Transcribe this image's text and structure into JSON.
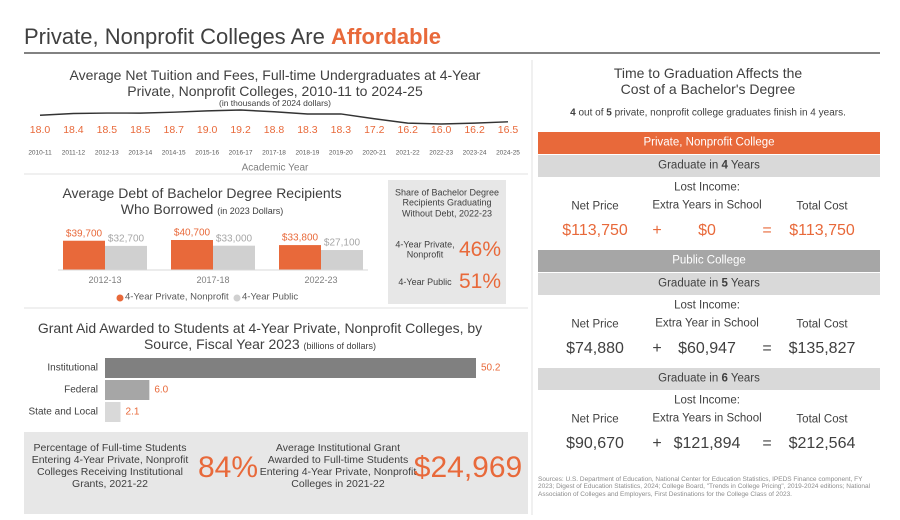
{
  "header": {
    "title": "Private, Nonprofit Colleges Are ",
    "title_emphasis": "Affordable"
  },
  "chart_data": [
    {
      "type": "line",
      "title": "Average Net Tuition and Fees, Full-time Undergraduates at 4-Year Private, Nonprofit Colleges, 2010-11 to 2024-25",
      "subtitle": "(in thousands of 2024 dollars)",
      "x_label": "Academic Year",
      "color": "#333333",
      "label_color": "#e8693a",
      "categories": [
        "2010-11",
        "2011-12",
        "2012-13",
        "2013-14",
        "2014-15",
        "2015-16",
        "2016-17",
        "2017-18",
        "2018-19",
        "2019-20",
        "2020-21",
        "2021-22",
        "2022-23",
        "2023-24",
        "2024-25"
      ],
      "values": [
        18.0,
        18.4,
        18.5,
        18.5,
        18.7,
        19.0,
        19.2,
        18.8,
        18.3,
        18.3,
        17.2,
        16.2,
        16.0,
        16.2,
        16.5
      ],
      "value_labels": [
        "18.0",
        "18.4",
        "18.5",
        "18.5",
        "18.7",
        "19.0",
        "19.2",
        "18.8",
        "18.3",
        "18.3",
        "17.2",
        "16.2",
        "16.0",
        "16.2",
        "16.5"
      ]
    },
    {
      "type": "bar",
      "title": "Average Debt of Bachelor Degree Recipients Who Borrowed",
      "title_note": "(in 2023 Dollars)",
      "categories": [
        "2012-13",
        "2017-18",
        "2022-23"
      ],
      "series": [
        {
          "name": "4-Year Private, Nonprofit",
          "color": "#e8693a",
          "values": [
            39700,
            40700,
            33800
          ],
          "value_labels": [
            "$39,700",
            "$40,700",
            "$33,800"
          ]
        },
        {
          "name": "4-Year Public",
          "color": "#d0d0d0",
          "values": [
            32700,
            33000,
            27100
          ],
          "value_labels": [
            "$32,700",
            "$33,000",
            "$27,100"
          ]
        }
      ]
    },
    {
      "type": "hbar",
      "title": "Grant Aid Awarded to Students at 4-Year Private, Nonprofit Colleges, by Source, Fiscal Year 2023",
      "title_note": "(billions of dollars)",
      "categories": [
        "Institutional",
        "Federal",
        "State and Local"
      ],
      "values": [
        50.2,
        6.0,
        2.1
      ],
      "value_labels": [
        "50.2",
        "6.0",
        "2.1"
      ],
      "colors": [
        "#808080",
        "#a6a6a6",
        "#d9d9d9"
      ]
    }
  ],
  "share": {
    "title": "Share of Bachelor Degree Recipients Graduating Without Debt, 2022-23",
    "rows": [
      {
        "label": "4-Year Private, Nonprofit",
        "value": "46%"
      },
      {
        "label": "4-Year Public",
        "value": "51%"
      }
    ]
  },
  "stats": [
    {
      "label": "Percentage of Full-time Students Entering 4-Year Private, Nonprofit Colleges Receiving Institutional Grants, 2021-22",
      "value": "84%"
    },
    {
      "label": "Average Institutional Grant Awarded to Full-time Students Entering 4-Year Private, Nonprofit Colleges in 2021-22",
      "value": "$24,969"
    }
  ],
  "graduation": {
    "title": "Time to Graduation Affects the Cost of a Bachelor's Degree",
    "note": [
      "4",
      " out of ",
      "5",
      " private, nonprofit college graduates finish in 4 years."
    ],
    "colleges": [
      {
        "name": "Private, Nonprofit College",
        "scenarios": [
          {
            "label": [
              "Graduate in ",
              "4",
              " Years"
            ],
            "net_label": "Net Price",
            "lost_label": [
              "Lost Income:",
              "Extra Years in School"
            ],
            "total_label": "Total Cost",
            "net": "$113,750",
            "plus": "+",
            "lost": "$0",
            "equals": "=",
            "total": "$113,750"
          }
        ]
      },
      {
        "name": "Public College",
        "scenarios": [
          {
            "label": [
              "Graduate in ",
              "5",
              " Years"
            ],
            "net_label": "Net Price",
            "lost_label": [
              "Lost Income:",
              "Extra Year in School"
            ],
            "total_label": "Total Cost",
            "net": "$74,880",
            "plus": "+",
            "lost": "$60,947",
            "equals": "=",
            "total": "$135,827"
          },
          {
            "label": [
              "Graduate in ",
              "6",
              " Years"
            ],
            "net_label": "Net Price",
            "lost_label": [
              "Lost Income:",
              "Extra Years in School"
            ],
            "total_label": "Total Cost",
            "net": "$90,670",
            "plus": "+",
            "lost": "$121,894",
            "equals": "=",
            "total": "$212,564"
          }
        ]
      }
    ]
  },
  "sources": "Sources: U.S. Department of Education, National Center for Education Statistics, IPEDS Finance component, FY 2023; Digest of Education Statistics, 2024; College Board, \"Trends in College Pricing\", 2019-2024 editions; National Association of Colleges and Employers, First Destinations for the College Class of 2023."
}
